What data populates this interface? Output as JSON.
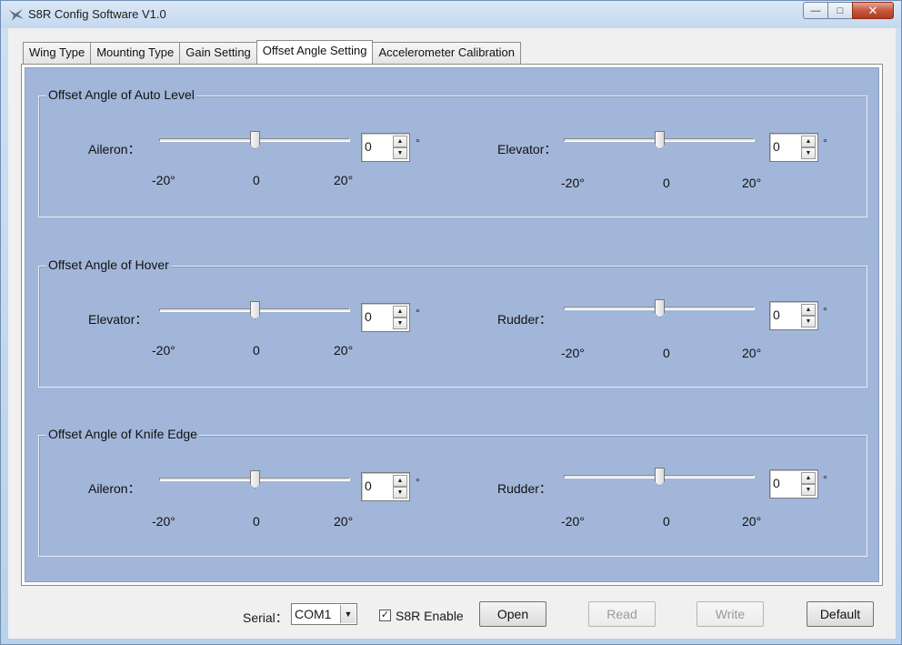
{
  "window": {
    "title": "S8R Config Software V1.0",
    "buttons": {
      "minimize": "—",
      "maximize": "□",
      "close": "✕"
    }
  },
  "tabs": [
    {
      "label": "Wing Type"
    },
    {
      "label": "Mounting Type"
    },
    {
      "label": "Gain Setting"
    },
    {
      "label": "Offset Angle Setting",
      "active": true
    },
    {
      "label": "Accelerometer Calibration"
    }
  ],
  "groups": {
    "auto_level": {
      "title": "Offset Angle of Auto Level",
      "left": {
        "label": "Aileron：",
        "value": "0",
        "min_label": "-20°",
        "mid_label": "0",
        "max_label": "20°",
        "unit": "°",
        "slider_value": 0
      },
      "right": {
        "label": "Elevator：",
        "value": "0",
        "min_label": "-20°",
        "mid_label": "0",
        "max_label": "20°",
        "unit": "°",
        "slider_value": 0
      }
    },
    "hover": {
      "title": "Offset Angle of Hover",
      "left": {
        "label": "Elevator：",
        "value": "0",
        "min_label": "-20°",
        "mid_label": "0",
        "max_label": "20°",
        "unit": "°",
        "slider_value": 0
      },
      "right": {
        "label": "Rudder：",
        "value": "0",
        "min_label": "-20°",
        "mid_label": "0",
        "max_label": "20°",
        "unit": "°",
        "slider_value": 0
      }
    },
    "knife_edge": {
      "title": "Offset Angle of Knife Edge",
      "left": {
        "label": "Aileron：",
        "value": "0",
        "min_label": "-20°",
        "mid_label": "0",
        "max_label": "20°",
        "unit": "°",
        "slider_value": 0
      },
      "right": {
        "label": "Rudder：",
        "value": "0",
        "min_label": "-20°",
        "mid_label": "0",
        "max_label": "20°",
        "unit": "°",
        "slider_value": 0
      }
    }
  },
  "bottom": {
    "serial_label": "Serial：",
    "serial_value": "COM1",
    "enable_label": "S8R Enable",
    "enable_checked": true,
    "check_mark": "✓",
    "open_label": "Open",
    "read_label": "Read",
    "write_label": "Write",
    "default_label": "Default"
  },
  "icons": {
    "app": "plane-icon",
    "spin_up": "▲",
    "spin_down": "▼",
    "combo_arrow": "▼"
  }
}
